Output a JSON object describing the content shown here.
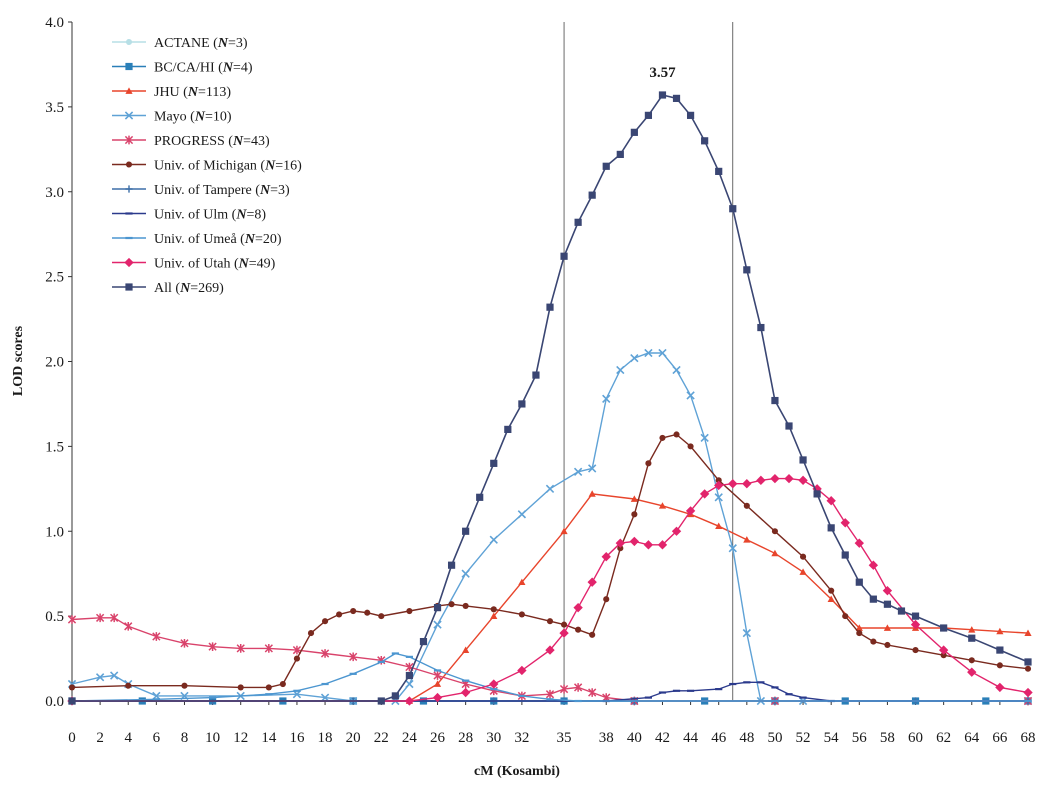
{
  "chart_data": {
    "type": "line",
    "xlabel": "cM (Kosambi)",
    "ylabel": "LOD scores",
    "xlim": [
      0,
      68
    ],
    "ylim": [
      0,
      4.0
    ],
    "x_ticks": [
      "0",
      "2",
      "4",
      "6",
      "8",
      "10",
      "12",
      "14",
      "16",
      "18",
      "20",
      "22",
      "24",
      "26",
      "28",
      "30",
      "32",
      "35",
      "38",
      "40",
      "42",
      "44",
      "46",
      "48",
      "50",
      "52",
      "54",
      "56",
      "58",
      "60",
      "62",
      "64",
      "66",
      "68"
    ],
    "y_ticks": [
      "0.0",
      "0.5",
      "1.0",
      "1.5",
      "2.0",
      "2.5",
      "3.0",
      "3.5",
      "4.0"
    ],
    "vertical_lines_cM": [
      35,
      47
    ],
    "annotations": [
      {
        "text": "3.57",
        "x": 42,
        "y": 3.57
      }
    ],
    "grid": false,
    "legend_position": "top-left",
    "series": [
      {
        "name": "ACTANE (N=3)",
        "color": "#b7dfe6",
        "marker": "circle",
        "points": [
          [
            0,
            0
          ],
          [
            10,
            0
          ],
          [
            20,
            0
          ],
          [
            30,
            0
          ],
          [
            40,
            0
          ],
          [
            50,
            0
          ],
          [
            60,
            0
          ],
          [
            68,
            0
          ]
        ]
      },
      {
        "name": "BC/CA/HI (N=4)",
        "color": "#2a7fb8",
        "marker": "square",
        "points": [
          [
            0,
            0
          ],
          [
            5,
            0
          ],
          [
            10,
            0
          ],
          [
            15,
            0
          ],
          [
            20,
            0
          ],
          [
            25,
            0
          ],
          [
            30,
            0
          ],
          [
            35,
            0
          ],
          [
            40,
            0
          ],
          [
            45,
            0
          ],
          [
            50,
            0
          ],
          [
            55,
            0
          ],
          [
            60,
            0
          ],
          [
            65,
            0
          ],
          [
            68,
            0
          ]
        ]
      },
      {
        "name": "JHU (N=113)",
        "color": "#e8452c",
        "marker": "triangle",
        "points": [
          [
            0,
            0
          ],
          [
            24,
            0
          ],
          [
            26,
            0.1
          ],
          [
            28,
            0.3
          ],
          [
            30,
            0.5
          ],
          [
            32,
            0.7
          ],
          [
            35,
            1.0
          ],
          [
            37,
            1.22
          ],
          [
            40,
            1.19
          ],
          [
            42,
            1.15
          ],
          [
            44,
            1.1
          ],
          [
            46,
            1.03
          ],
          [
            48,
            0.95
          ],
          [
            50,
            0.87
          ],
          [
            52,
            0.76
          ],
          [
            54,
            0.6
          ],
          [
            56,
            0.43
          ],
          [
            58,
            0.43
          ],
          [
            60,
            0.43
          ],
          [
            62,
            0.43
          ],
          [
            64,
            0.42
          ],
          [
            66,
            0.41
          ],
          [
            68,
            0.4
          ]
        ]
      },
      {
        "name": "Mayo (N=10)",
        "color": "#5fa2d6",
        "marker": "x",
        "points": [
          [
            0,
            0.1
          ],
          [
            2,
            0.14
          ],
          [
            3,
            0.15
          ],
          [
            4,
            0.1
          ],
          [
            6,
            0.03
          ],
          [
            8,
            0.03
          ],
          [
            12,
            0.03
          ],
          [
            16,
            0.04
          ],
          [
            18,
            0.02
          ],
          [
            20,
            0
          ],
          [
            23,
            0
          ],
          [
            24,
            0.1
          ],
          [
            26,
            0.45
          ],
          [
            28,
            0.75
          ],
          [
            30,
            0.95
          ],
          [
            32,
            1.1
          ],
          [
            34,
            1.25
          ],
          [
            36,
            1.35
          ],
          [
            37,
            1.37
          ],
          [
            38,
            1.78
          ],
          [
            39,
            1.95
          ],
          [
            40,
            2.02
          ],
          [
            41,
            2.05
          ],
          [
            42,
            2.05
          ],
          [
            43,
            1.95
          ],
          [
            44,
            1.8
          ],
          [
            45,
            1.55
          ],
          [
            46,
            1.2
          ],
          [
            47,
            0.9
          ],
          [
            48,
            0.4
          ],
          [
            49,
            0
          ],
          [
            52,
            0
          ],
          [
            68,
            0
          ]
        ]
      },
      {
        "name": "PROGRESS (N=43)",
        "color": "#d9436b",
        "marker": "asterisk",
        "points": [
          [
            0,
            0.48
          ],
          [
            2,
            0.49
          ],
          [
            3,
            0.49
          ],
          [
            4,
            0.44
          ],
          [
            6,
            0.38
          ],
          [
            8,
            0.34
          ],
          [
            10,
            0.32
          ],
          [
            12,
            0.31
          ],
          [
            14,
            0.31
          ],
          [
            16,
            0.3
          ],
          [
            18,
            0.28
          ],
          [
            20,
            0.26
          ],
          [
            22,
            0.24
          ],
          [
            24,
            0.2
          ],
          [
            26,
            0.15
          ],
          [
            28,
            0.1
          ],
          [
            30,
            0.06
          ],
          [
            32,
            0.03
          ],
          [
            34,
            0.04
          ],
          [
            35,
            0.07
          ],
          [
            36,
            0.08
          ],
          [
            37,
            0.05
          ],
          [
            38,
            0.02
          ],
          [
            40,
            0
          ],
          [
            50,
            0
          ],
          [
            68,
            0
          ]
        ]
      },
      {
        "name": "Univ. of Michigan (N=16)",
        "color": "#7a2a1f",
        "marker": "circle",
        "points": [
          [
            0,
            0.08
          ],
          [
            4,
            0.09
          ],
          [
            8,
            0.09
          ],
          [
            12,
            0.08
          ],
          [
            14,
            0.08
          ],
          [
            15,
            0.1
          ],
          [
            16,
            0.25
          ],
          [
            17,
            0.4
          ],
          [
            18,
            0.47
          ],
          [
            19,
            0.51
          ],
          [
            20,
            0.53
          ],
          [
            21,
            0.52
          ],
          [
            22,
            0.5
          ],
          [
            24,
            0.53
          ],
          [
            26,
            0.56
          ],
          [
            27,
            0.57
          ],
          [
            28,
            0.56
          ],
          [
            30,
            0.54
          ],
          [
            32,
            0.51
          ],
          [
            34,
            0.47
          ],
          [
            35,
            0.45
          ],
          [
            36,
            0.42
          ],
          [
            37,
            0.39
          ],
          [
            38,
            0.6
          ],
          [
            39,
            0.9
          ],
          [
            40,
            1.1
          ],
          [
            41,
            1.4
          ],
          [
            42,
            1.55
          ],
          [
            43,
            1.57
          ],
          [
            44,
            1.5
          ],
          [
            46,
            1.3
          ],
          [
            48,
            1.15
          ],
          [
            50,
            1.0
          ],
          [
            52,
            0.85
          ],
          [
            54,
            0.65
          ],
          [
            55,
            0.5
          ],
          [
            56,
            0.4
          ],
          [
            57,
            0.35
          ],
          [
            58,
            0.33
          ],
          [
            60,
            0.3
          ],
          [
            62,
            0.27
          ],
          [
            64,
            0.24
          ],
          [
            66,
            0.21
          ],
          [
            68,
            0.19
          ]
        ]
      },
      {
        "name": "Univ. of Tampere (N=3)",
        "color": "#3d6fa8",
        "marker": "plus",
        "points": [
          [
            0,
            0
          ],
          [
            10,
            0
          ],
          [
            20,
            0
          ],
          [
            30,
            0
          ],
          [
            40,
            0
          ],
          [
            50,
            0
          ],
          [
            60,
            0
          ],
          [
            68,
            0
          ]
        ]
      },
      {
        "name": "Univ. of Ulm (N=8)",
        "color": "#2b3a8c",
        "marker": "dash",
        "points": [
          [
            0,
            0
          ],
          [
            38,
            0
          ],
          [
            41,
            0.02
          ],
          [
            42,
            0.05
          ],
          [
            43,
            0.06
          ],
          [
            44,
            0.06
          ],
          [
            46,
            0.07
          ],
          [
            47,
            0.1
          ],
          [
            48,
            0.11
          ],
          [
            49,
            0.11
          ],
          [
            50,
            0.08
          ],
          [
            51,
            0.04
          ],
          [
            52,
            0.02
          ],
          [
            54,
            0
          ],
          [
            68,
            0
          ]
        ]
      },
      {
        "name": "Univ. of Umeå (N=20)",
        "color": "#4c96d0",
        "marker": "dash",
        "points": [
          [
            0,
            0
          ],
          [
            6,
            0.01
          ],
          [
            10,
            0.02
          ],
          [
            14,
            0.04
          ],
          [
            16,
            0.06
          ],
          [
            18,
            0.1
          ],
          [
            20,
            0.16
          ],
          [
            22,
            0.23
          ],
          [
            23,
            0.28
          ],
          [
            24,
            0.26
          ],
          [
            26,
            0.18
          ],
          [
            28,
            0.12
          ],
          [
            30,
            0.07
          ],
          [
            32,
            0.03
          ],
          [
            34,
            0.01
          ],
          [
            36,
            0
          ],
          [
            68,
            0
          ]
        ]
      },
      {
        "name": "Univ. of Utah (N=49)",
        "color": "#e2246c",
        "marker": "diamond",
        "points": [
          [
            0,
            0
          ],
          [
            24,
            0
          ],
          [
            26,
            0.02
          ],
          [
            28,
            0.05
          ],
          [
            30,
            0.1
          ],
          [
            32,
            0.18
          ],
          [
            34,
            0.3
          ],
          [
            35,
            0.4
          ],
          [
            36,
            0.55
          ],
          [
            37,
            0.7
          ],
          [
            38,
            0.85
          ],
          [
            39,
            0.93
          ],
          [
            40,
            0.94
          ],
          [
            41,
            0.92
          ],
          [
            42,
            0.92
          ],
          [
            43,
            1.0
          ],
          [
            44,
            1.12
          ],
          [
            45,
            1.22
          ],
          [
            46,
            1.27
          ],
          [
            47,
            1.28
          ],
          [
            48,
            1.28
          ],
          [
            49,
            1.3
          ],
          [
            50,
            1.31
          ],
          [
            51,
            1.31
          ],
          [
            52,
            1.3
          ],
          [
            53,
            1.25
          ],
          [
            54,
            1.18
          ],
          [
            55,
            1.05
          ],
          [
            56,
            0.93
          ],
          [
            57,
            0.8
          ],
          [
            58,
            0.65
          ],
          [
            60,
            0.45
          ],
          [
            62,
            0.3
          ],
          [
            64,
            0.17
          ],
          [
            66,
            0.08
          ],
          [
            68,
            0.05
          ]
        ]
      },
      {
        "name": "All (N=269)",
        "color": "#3a4673",
        "marker": "square",
        "points": [
          [
            0,
            0
          ],
          [
            22,
            0
          ],
          [
            23,
            0.03
          ],
          [
            24,
            0.15
          ],
          [
            25,
            0.35
          ],
          [
            26,
            0.55
          ],
          [
            27,
            0.8
          ],
          [
            28,
            1.0
          ],
          [
            29,
            1.2
          ],
          [
            30,
            1.4
          ],
          [
            31,
            1.6
          ],
          [
            32,
            1.75
          ],
          [
            33,
            1.92
          ],
          [
            34,
            2.32
          ],
          [
            35,
            2.62
          ],
          [
            36,
            2.82
          ],
          [
            37,
            2.98
          ],
          [
            38,
            3.15
          ],
          [
            39,
            3.22
          ],
          [
            40,
            3.35
          ],
          [
            41,
            3.45
          ],
          [
            42,
            3.57
          ],
          [
            43,
            3.55
          ],
          [
            44,
            3.45
          ],
          [
            45,
            3.3
          ],
          [
            46,
            3.12
          ],
          [
            47,
            2.9
          ],
          [
            48,
            2.54
          ],
          [
            49,
            2.2
          ],
          [
            50,
            1.77
          ],
          [
            51,
            1.62
          ],
          [
            52,
            1.42
          ],
          [
            53,
            1.22
          ],
          [
            54,
            1.02
          ],
          [
            55,
            0.86
          ],
          [
            56,
            0.7
          ],
          [
            57,
            0.6
          ],
          [
            58,
            0.57
          ],
          [
            59,
            0.53
          ],
          [
            60,
            0.5
          ],
          [
            62,
            0.43
          ],
          [
            64,
            0.37
          ],
          [
            66,
            0.3
          ],
          [
            68,
            0.23
          ]
        ]
      }
    ],
    "legend": [
      {
        "label": "ACTANE (",
        "n": "N",
        "rest": "=3)"
      },
      {
        "label": "BC/CA/HI (",
        "n": "N",
        "rest": "=4)"
      },
      {
        "label": "JHU (",
        "n": "N",
        "rest": "=113)"
      },
      {
        "label": "Mayo (",
        "n": "N",
        "rest": "=10)"
      },
      {
        "label": "PROGRESS (",
        "n": "N",
        "rest": "=43)"
      },
      {
        "label": "Univ. of Michigan (",
        "n": "N",
        "rest": "=16)"
      },
      {
        "label": "Univ. of Tampere (",
        "n": "N",
        "rest": "=3)"
      },
      {
        "label": "Univ. of Ulm (",
        "n": "N",
        "rest": "=8)"
      },
      {
        "label": "Univ. of Umeå (",
        "n": "N",
        "rest": "=20)"
      },
      {
        "label": "Univ. of Utah (",
        "n": "N",
        "rest": "=49)"
      },
      {
        "label": "All (",
        "n": "N",
        "rest": "=269)"
      }
    ]
  }
}
